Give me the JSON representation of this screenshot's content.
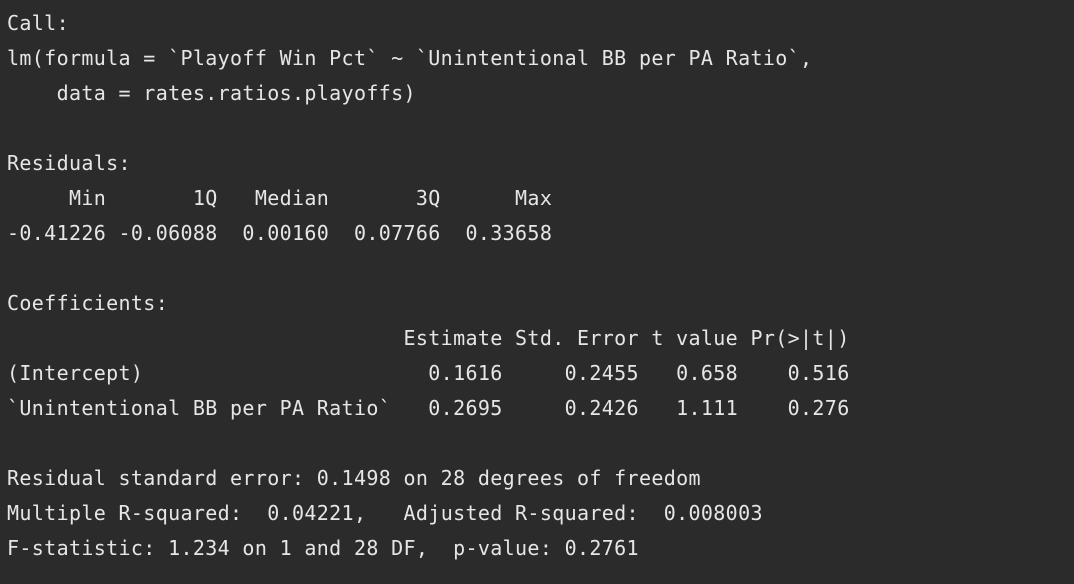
{
  "console": {
    "lines": [
      "Call:",
      "lm(formula = `Playoff Win Pct` ~ `Unintentional BB per PA Ratio`,",
      "    data = rates.ratios.playoffs)",
      "",
      "Residuals:",
      "     Min       1Q   Median       3Q      Max",
      "-0.41226 -0.06088  0.00160  0.07766  0.33658",
      "",
      "Coefficients:",
      "                                Estimate Std. Error t value Pr(>|t|)",
      "(Intercept)                       0.1616     0.2455   0.658    0.516",
      "`Unintentional BB per PA Ratio`   0.2695     0.2426   1.111    0.276",
      "",
      "Residual standard error: 0.1498 on 28 degrees of freedom",
      "Multiple R-squared:  0.04221,\tAdjusted R-squared:  0.008003",
      "F-statistic: 1.234 on 1 and 28 DF,  p-value: 0.2761"
    ]
  }
}
